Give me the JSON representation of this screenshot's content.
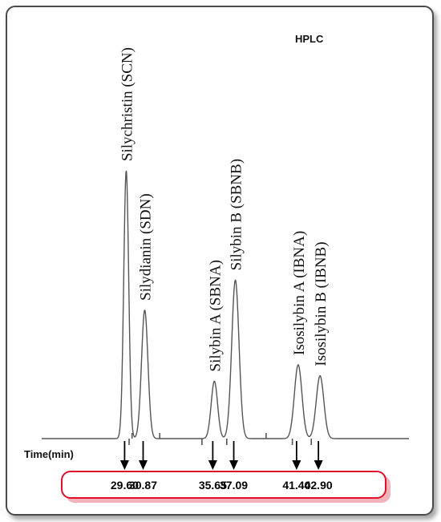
{
  "chart_data": {
    "type": "line",
    "title": "",
    "annotation": "HPLC",
    "xlabel": "Time(min)",
    "ylabel": "",
    "xlim": [
      23.8,
      49.0
    ],
    "ylim": [
      0,
      1
    ],
    "grid": false,
    "series": [
      {
        "peaks": [
          {
            "name": "Silychristin (SCN)",
            "x": 29.6,
            "height": 0.98,
            "width": 0.17
          },
          {
            "name": "Silydianin (SDN)",
            "x": 30.87,
            "height": 0.47,
            "width": 0.22
          },
          {
            "name": "Silybin A (SBNA)",
            "x": 35.65,
            "height": 0.21,
            "width": 0.22
          },
          {
            "name": "Silybin B (SBNB)",
            "x": 37.09,
            "height": 0.58,
            "width": 0.25
          },
          {
            "name": "Isosilybin A (IBNA)",
            "x": 41.4,
            "height": 0.27,
            "width": 0.26
          },
          {
            "name": "Isosilybin B (IBNB)",
            "x": 42.9,
            "height": 0.23,
            "width": 0.26
          }
        ]
      }
    ],
    "retention_times": [
      "29.60",
      "30.87",
      "35.65",
      "37.09",
      "41.40",
      "42.90"
    ],
    "baseline_ticks": {
      "up": [
        30.0,
        31.9,
        39.2
      ],
      "down": [
        29.8,
        34.8,
        36.5,
        41.0,
        42.3
      ]
    }
  },
  "colors": {
    "trace": "#555555",
    "arrow": "#000000",
    "box_border": "#e0102a",
    "box_shadow": "#f3b3ba",
    "frame": "#4a4a4a"
  }
}
